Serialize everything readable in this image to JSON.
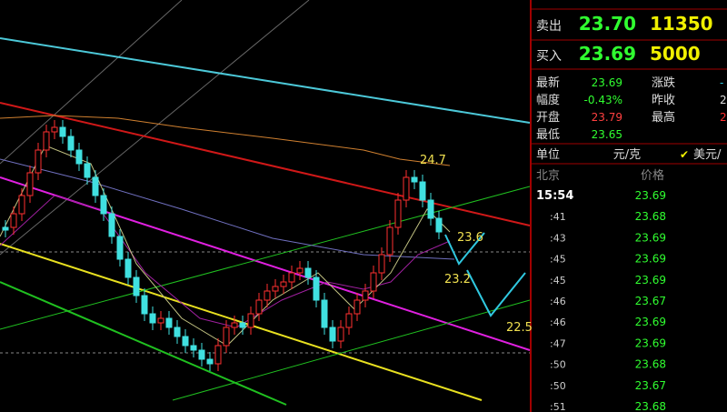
{
  "chart_panel": {
    "annotations": [
      "24.7",
      "23.6",
      "23.2",
      "22.5"
    ]
  },
  "quote_panel": {
    "ask": {
      "label": "卖出",
      "price": "23.70",
      "volume": "11350"
    },
    "bid": {
      "label": "买入",
      "price": "23.69",
      "volume": "5000"
    },
    "stats": [
      [
        "最新",
        "23.69",
        "涨跌",
        "-"
      ],
      [
        "幅度",
        "-0.43%",
        "昨收",
        "2"
      ],
      [
        "开盘",
        "23.79",
        "最高",
        "2"
      ],
      [
        "最低",
        "23.65",
        "",
        ""
      ]
    ],
    "unit": {
      "label": "单位",
      "value": "元/克",
      "alt": "美元/"
    },
    "ticks_header": [
      "北京",
      "价格"
    ],
    "ticks": [
      [
        "15:54",
        "23.69"
      ],
      [
        ":41",
        "23.68"
      ],
      [
        ":43",
        "23.69"
      ],
      [
        ":45",
        "23.69"
      ],
      [
        ":45",
        "23.69"
      ],
      [
        ":46",
        "23.67"
      ],
      [
        ":46",
        "23.69"
      ],
      [
        ":47",
        "23.69"
      ],
      [
        ":50",
        "23.68"
      ],
      [
        ":50",
        "23.67"
      ],
      [
        ":51",
        "23.68"
      ]
    ]
  }
}
